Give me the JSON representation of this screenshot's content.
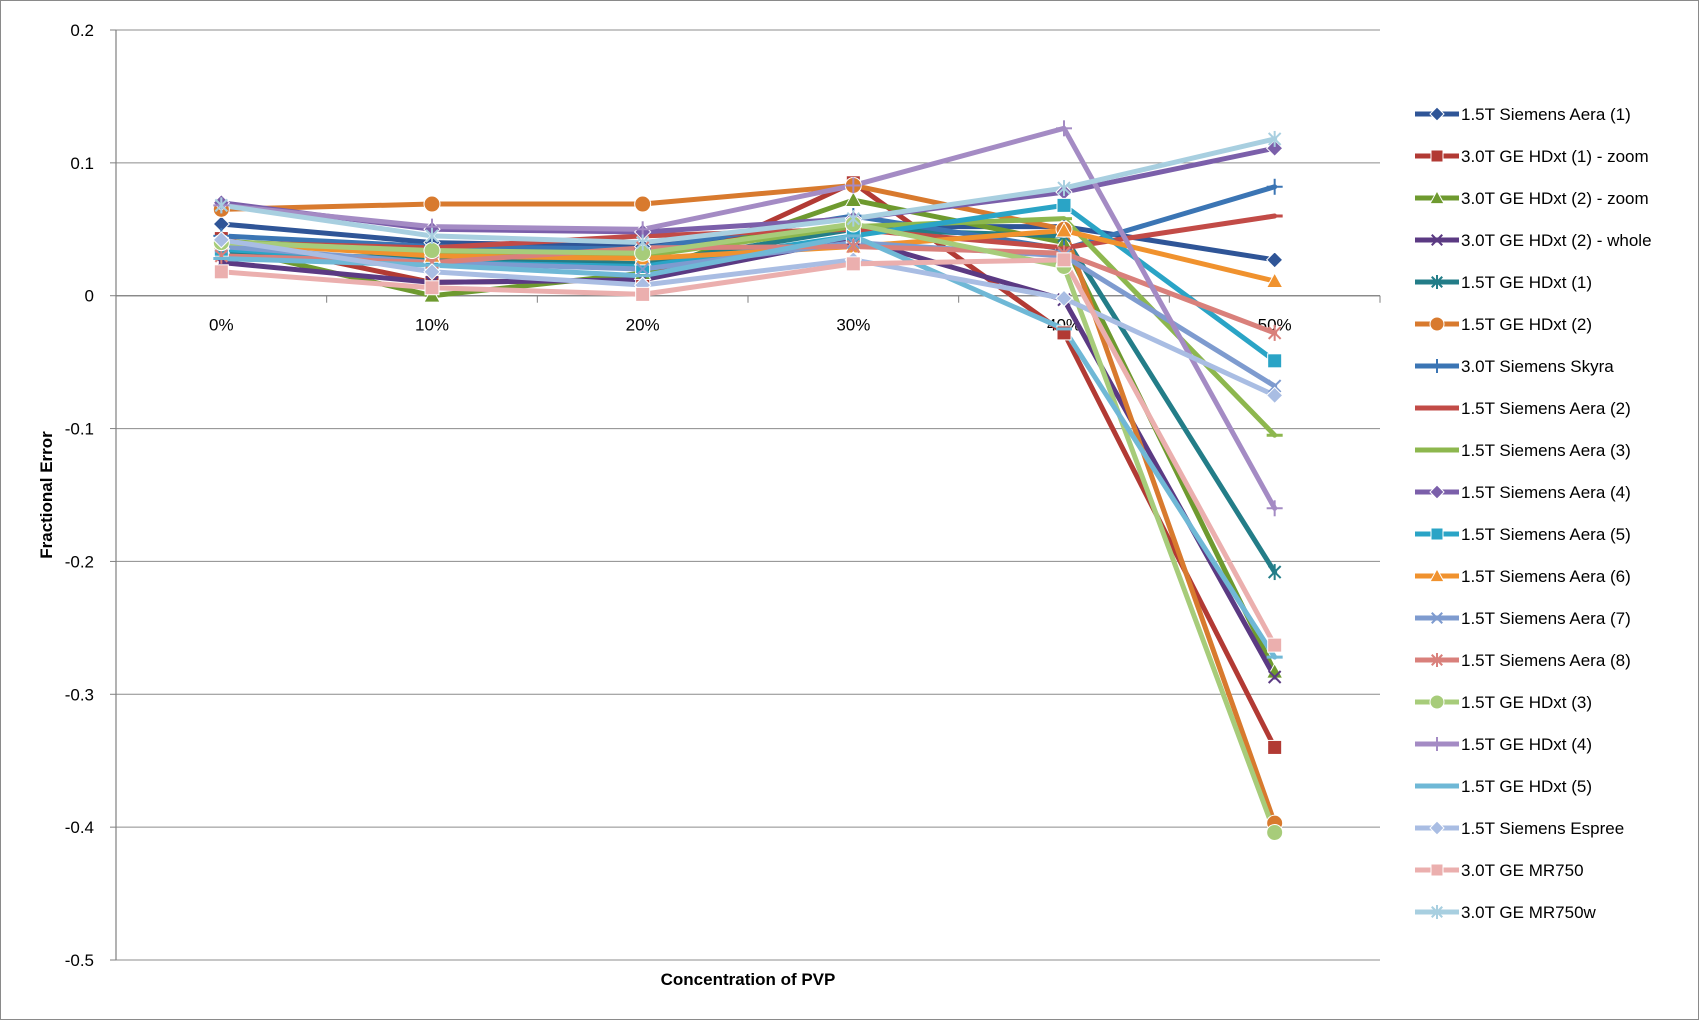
{
  "chart_data": {
    "type": "line",
    "title": "",
    "xlabel": "Concentration of PVP",
    "ylabel": "Fractional Error",
    "categories": [
      "0%",
      "10%",
      "20%",
      "30%",
      "40%",
      "50%"
    ],
    "ylim": [
      -0.5,
      0.2
    ],
    "yticks": [
      0.2,
      0.1,
      0,
      -0.1,
      -0.2,
      -0.3,
      -0.4,
      -0.5
    ],
    "ytick_labels": [
      "0.2",
      "0.1",
      "0",
      "-0.1",
      "-0.2",
      "-0.3",
      "-0.4",
      "-0.5"
    ],
    "grid": true,
    "legend_position": "right",
    "series": [
      {
        "name": "1.5T Siemens Aera (1)",
        "color": "#2F5597",
        "marker": "diamond",
        "values": [
          0.054,
          0.04,
          0.037,
          0.052,
          0.052,
          0.027
        ]
      },
      {
        "name": "3.0T GE HDxt (1) - zoom",
        "color": "#B23A34",
        "marker": "square",
        "values": [
          0.043,
          0.01,
          0.012,
          0.085,
          -0.028,
          -0.34
        ]
      },
      {
        "name": "3.0T GE HDxt (2) - zoom",
        "color": "#6E9A2F",
        "marker": "triangle",
        "values": [
          0.037,
          0.0,
          0.017,
          0.072,
          0.04,
          -0.283
        ]
      },
      {
        "name": "3.0T GE HDxt (2) - whole",
        "color": "#5B3A83",
        "marker": "x",
        "values": [
          0.025,
          0.01,
          0.012,
          0.043,
          -0.003,
          -0.287
        ]
      },
      {
        "name": "1.5T GE HDxt (1)",
        "color": "#237D88",
        "marker": "star",
        "values": [
          0.032,
          0.028,
          0.024,
          0.05,
          0.045,
          -0.208
        ]
      },
      {
        "name": "1.5T GE HDxt (2)",
        "color": "#D87A2E",
        "marker": "circle",
        "values": [
          0.065,
          0.069,
          0.069,
          0.083,
          0.05,
          -0.397
        ]
      },
      {
        "name": "3.0T Siemens Skyra",
        "color": "#3B75B4",
        "marker": "plus",
        "values": [
          0.045,
          0.037,
          0.035,
          0.06,
          0.035,
          0.082
        ]
      },
      {
        "name": "1.5T Siemens Aera (2)",
        "color": "#C24B47",
        "marker": "dash",
        "values": [
          0.04,
          0.036,
          0.045,
          0.05,
          0.036,
          0.06
        ]
      },
      {
        "name": "1.5T Siemens Aera (3)",
        "color": "#8DB74E",
        "marker": "dash",
        "values": [
          0.041,
          0.033,
          0.03,
          0.052,
          0.058,
          -0.105
        ]
      },
      {
        "name": "1.5T Siemens Aera (4)",
        "color": "#7B5FAA",
        "marker": "diamond",
        "values": [
          0.07,
          0.05,
          0.048,
          0.058,
          0.078,
          0.111
        ]
      },
      {
        "name": "1.5T Siemens Aera (5)",
        "color": "#2AA4C6",
        "marker": "square",
        "values": [
          0.035,
          0.025,
          0.022,
          0.045,
          0.068,
          -0.049
        ]
      },
      {
        "name": "1.5T Siemens Aera (6)",
        "color": "#F0922E",
        "marker": "triangle",
        "values": [
          0.04,
          0.03,
          0.028,
          0.037,
          0.049,
          0.011
        ]
      },
      {
        "name": "1.5T Siemens Aera (7)",
        "color": "#7E9BCF",
        "marker": "x",
        "values": [
          0.037,
          0.025,
          0.02,
          0.04,
          0.03,
          -0.068
        ]
      },
      {
        "name": "1.5T Siemens Aera (8)",
        "color": "#D9807B",
        "marker": "star",
        "values": [
          0.03,
          0.025,
          0.036,
          0.037,
          0.032,
          -0.028
        ]
      },
      {
        "name": "1.5T GE HDxt (3)",
        "color": "#A7CC7A",
        "marker": "circle",
        "values": [
          0.04,
          0.034,
          0.032,
          0.054,
          0.022,
          -0.404
        ]
      },
      {
        "name": "1.5T GE HDxt (4)",
        "color": "#A48BC4",
        "marker": "plus",
        "values": [
          0.068,
          0.052,
          0.05,
          0.083,
          0.126,
          -0.16
        ]
      },
      {
        "name": "1.5T GE HDxt (5)",
        "color": "#6FB8D6",
        "marker": "dash",
        "values": [
          0.028,
          0.023,
          0.015,
          0.045,
          -0.025,
          -0.272
        ]
      },
      {
        "name": "1.5T Siemens Espree",
        "color": "#A9BDE3",
        "marker": "diamond",
        "values": [
          0.042,
          0.018,
          0.008,
          0.027,
          -0.002,
          -0.075
        ]
      },
      {
        "name": "3.0T GE MR750",
        "color": "#EBAFAE",
        "marker": "square",
        "values": [
          0.018,
          0.006,
          0.001,
          0.024,
          0.027,
          -0.263
        ]
      },
      {
        "name": "3.0T GE MR750w",
        "color": "#A8CFE0",
        "marker": "star",
        "values": [
          0.068,
          0.045,
          0.04,
          0.058,
          0.081,
          0.118
        ]
      }
    ]
  }
}
